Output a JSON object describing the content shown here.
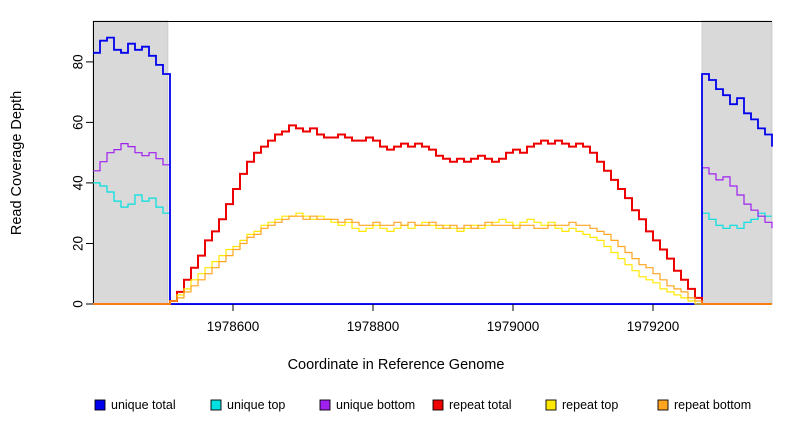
{
  "figure": {
    "x_axis_title": "Coordinate in Reference Genome",
    "y_axis_title": "Read Coverage Depth"
  },
  "chart_data": {
    "type": "line",
    "title": "",
    "xlabel": "Coordinate in Reference Genome",
    "ylabel": "Read Coverage Depth",
    "xlim": [
      1978400,
      1979370
    ],
    "ylim": [
      0,
      93.5
    ],
    "x_ticks": [
      1978600,
      1978800,
      1979000,
      1979200
    ],
    "y_ticks": [
      0,
      20,
      40,
      60,
      80
    ],
    "grid": false,
    "legend_position": "bottom",
    "shaded_regions": [
      {
        "name": "left-unique-flank",
        "x_start": 1978400,
        "x_end": 1978507,
        "color": "#d9d9d9"
      },
      {
        "name": "right-unique-flank",
        "x_start": 1979270,
        "x_end": 1979370,
        "color": "#d9d9d9"
      }
    ],
    "x0": 1978400,
    "dx": 10,
    "series": [
      {
        "name": "unique total",
        "color": "#0000ee",
        "width": 1.8,
        "values": [
          83,
          87,
          88,
          84,
          83,
          86,
          84,
          85,
          82,
          79,
          76,
          0,
          0,
          0,
          0,
          0,
          0,
          0,
          0,
          0,
          0,
          0,
          0,
          0,
          0,
          0,
          0,
          0,
          0,
          0,
          0,
          0,
          0,
          0,
          0,
          0,
          0,
          0,
          0,
          0,
          0,
          0,
          0,
          0,
          0,
          0,
          0,
          0,
          0,
          0,
          0,
          0,
          0,
          0,
          0,
          0,
          0,
          0,
          0,
          0,
          0,
          0,
          0,
          0,
          0,
          0,
          0,
          0,
          0,
          0,
          0,
          0,
          0,
          0,
          0,
          0,
          0,
          0,
          0,
          0,
          0,
          0,
          0,
          0,
          0,
          0,
          0,
          76,
          74,
          71,
          69,
          66,
          68,
          63,
          61,
          58,
          56,
          52
        ]
      },
      {
        "name": "unique top",
        "color": "#00e0e0",
        "width": 1.2,
        "values": [
          40,
          39,
          37,
          34,
          32,
          33,
          36,
          34,
          35,
          32,
          30,
          0,
          0,
          0,
          0,
          0,
          0,
          0,
          0,
          0,
          0,
          0,
          0,
          0,
          0,
          0,
          0,
          0,
          0,
          0,
          0,
          0,
          0,
          0,
          0,
          0,
          0,
          0,
          0,
          0,
          0,
          0,
          0,
          0,
          0,
          0,
          0,
          0,
          0,
          0,
          0,
          0,
          0,
          0,
          0,
          0,
          0,
          0,
          0,
          0,
          0,
          0,
          0,
          0,
          0,
          0,
          0,
          0,
          0,
          0,
          0,
          0,
          0,
          0,
          0,
          0,
          0,
          0,
          0,
          0,
          0,
          0,
          0,
          0,
          0,
          0,
          0,
          30,
          28,
          26,
          25,
          26,
          25,
          27,
          28,
          30,
          29,
          29
        ]
      },
      {
        "name": "unique bottom",
        "color": "#a020f0",
        "width": 1.2,
        "values": [
          44,
          47,
          50,
          51,
          53,
          52,
          50,
          49,
          50,
          48,
          46,
          0,
          0,
          0,
          0,
          0,
          0,
          0,
          0,
          0,
          0,
          0,
          0,
          0,
          0,
          0,
          0,
          0,
          0,
          0,
          0,
          0,
          0,
          0,
          0,
          0,
          0,
          0,
          0,
          0,
          0,
          0,
          0,
          0,
          0,
          0,
          0,
          0,
          0,
          0,
          0,
          0,
          0,
          0,
          0,
          0,
          0,
          0,
          0,
          0,
          0,
          0,
          0,
          0,
          0,
          0,
          0,
          0,
          0,
          0,
          0,
          0,
          0,
          0,
          0,
          0,
          0,
          0,
          0,
          0,
          0,
          0,
          0,
          0,
          0,
          0,
          0,
          45,
          43,
          41,
          42,
          39,
          36,
          33,
          31,
          29,
          27,
          25
        ]
      },
      {
        "name": "repeat total",
        "color": "#ee0000",
        "width": 2.0,
        "values": [
          0,
          0,
          0,
          0,
          0,
          0,
          0,
          0,
          0,
          0,
          0,
          1,
          4,
          8,
          12,
          16,
          21,
          24,
          28,
          33,
          38,
          43,
          47,
          50,
          52,
          54,
          56,
          57,
          59,
          58,
          57,
          58,
          56,
          55,
          55,
          56,
          55,
          54,
          54,
          55,
          54,
          52,
          51,
          52,
          53,
          52,
          53,
          52,
          51,
          49,
          48,
          47,
          48,
          47,
          48,
          49,
          48,
          47,
          48,
          50,
          51,
          50,
          52,
          53,
          54,
          53,
          54,
          53,
          52,
          53,
          52,
          50,
          47,
          44,
          41,
          38,
          35,
          31,
          28,
          24,
          21,
          18,
          15,
          11,
          8,
          5,
          2,
          0,
          0,
          0,
          0,
          0,
          0,
          0,
          0,
          0,
          0,
          0
        ]
      },
      {
        "name": "repeat top",
        "color": "#ffe800",
        "width": 1.2,
        "values": [
          0,
          0,
          0,
          0,
          0,
          0,
          0,
          0,
          0,
          0,
          0,
          1,
          3,
          5,
          8,
          10,
          12,
          14,
          16,
          18,
          19,
          21,
          23,
          24,
          26,
          27,
          28,
          29,
          29,
          30,
          29,
          28,
          29,
          28,
          27,
          26,
          27,
          25,
          24,
          25,
          26,
          25,
          24,
          25,
          26,
          25,
          26,
          27,
          26,
          25,
          26,
          25,
          24,
          25,
          26,
          25,
          26,
          27,
          28,
          27,
          26,
          27,
          28,
          27,
          26,
          27,
          25,
          24,
          25,
          24,
          23,
          22,
          21,
          19,
          17,
          15,
          13,
          11,
          9,
          8,
          7,
          5,
          4,
          3,
          2,
          1,
          0,
          0,
          0,
          0,
          0,
          0,
          0,
          0,
          0,
          0,
          0,
          0
        ]
      },
      {
        "name": "repeat bottom",
        "color": "#ffa520",
        "width": 1.2,
        "values": [
          0,
          0,
          0,
          0,
          0,
          0,
          0,
          0,
          0,
          0,
          0,
          1,
          2,
          4,
          6,
          8,
          10,
          12,
          14,
          16,
          18,
          20,
          22,
          23,
          25,
          26,
          27,
          28,
          29,
          29,
          28,
          29,
          28,
          28,
          28,
          27,
          28,
          27,
          26,
          26,
          27,
          26,
          26,
          27,
          26,
          27,
          26,
          26,
          27,
          26,
          25,
          26,
          25,
          26,
          25,
          26,
          27,
          26,
          26,
          26,
          25,
          26,
          26,
          25,
          25,
          26,
          26,
          26,
          27,
          26,
          26,
          25,
          24,
          23,
          21,
          19,
          17,
          15,
          13,
          12,
          10,
          8,
          6,
          5,
          4,
          2,
          1,
          0,
          0,
          0,
          0,
          0,
          0,
          0,
          0,
          0,
          0,
          0
        ]
      }
    ],
    "legend_entries": [
      "unique total",
      "unique top",
      "unique bottom",
      "repeat total",
      "repeat top",
      "repeat bottom"
    ]
  }
}
